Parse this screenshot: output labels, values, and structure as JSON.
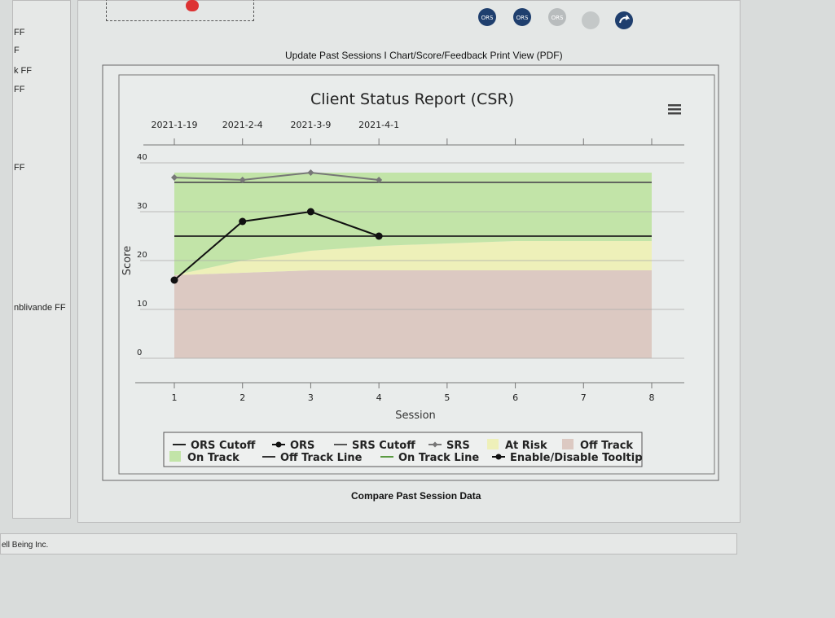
{
  "sidebar": {
    "items": [
      "FF",
      "F",
      "k FF",
      "FF",
      "FF",
      "nblivande FF"
    ]
  },
  "toolbar": {
    "icons": [
      "ORS",
      "ORS",
      "ORS"
    ]
  },
  "links": {
    "top": "Update Past Sessions I Chart/Score/Feedback Print View (PDF)",
    "bottom": "Compare Past Session Data"
  },
  "footer": "ell Being Inc.",
  "chart_data": {
    "type": "line",
    "title": "Client Status Report (CSR)",
    "x_label": "Session",
    "y_label": "Score",
    "x": [
      1,
      2,
      3,
      4,
      5,
      6,
      7,
      8
    ],
    "xlim": [
      1,
      8
    ],
    "xticks": [
      1,
      2,
      3,
      4,
      5,
      6,
      7,
      8
    ],
    "top_labels": [
      "2021-1-19",
      "2021-2-4",
      "2021-3-9",
      "2021-4-1"
    ],
    "ylim": [
      0,
      40
    ],
    "yticks": [
      0,
      10,
      20,
      30,
      40
    ],
    "grid": true,
    "series": [
      {
        "name": "Off Track",
        "type": "area",
        "color": "#dcc9c2",
        "values": [
          17,
          17.5,
          18,
          18,
          18,
          18,
          18,
          18
        ]
      },
      {
        "name": "At Risk",
        "type": "area",
        "color": "#eef0b9",
        "values": [
          0,
          2.5,
          4,
          5,
          5.5,
          6,
          6,
          6
        ]
      },
      {
        "name": "On Track",
        "type": "area",
        "color": "#c2e4a8",
        "values": [
          21,
          18,
          16,
          15,
          14.5,
          14,
          14,
          14
        ]
      },
      {
        "name": "ORS Cutoff",
        "type": "line",
        "color": "#222222",
        "values": [
          25,
          25,
          25,
          25,
          25,
          25,
          25,
          25
        ]
      },
      {
        "name": "SRS Cutoff",
        "type": "line",
        "color": "#555555",
        "values": [
          36,
          36,
          36,
          36,
          36,
          36,
          36,
          36
        ]
      },
      {
        "name": "SRS",
        "type": "line",
        "marker": "diamond",
        "color": "#777777",
        "values": [
          37,
          36.5,
          38,
          36.5,
          null,
          null,
          null,
          null
        ]
      },
      {
        "name": "ORS",
        "type": "line",
        "marker": "circle",
        "color": "#111111",
        "values": [
          16,
          28,
          30,
          25,
          null,
          null,
          null,
          null
        ]
      }
    ],
    "extra_legend": [
      {
        "name": "Off Track Line",
        "color": "#333333"
      },
      {
        "name": "On Track Line",
        "color": "#5a9a40"
      },
      {
        "name": "Enable/Disable Tooltip",
        "color": "#111111"
      }
    ]
  }
}
